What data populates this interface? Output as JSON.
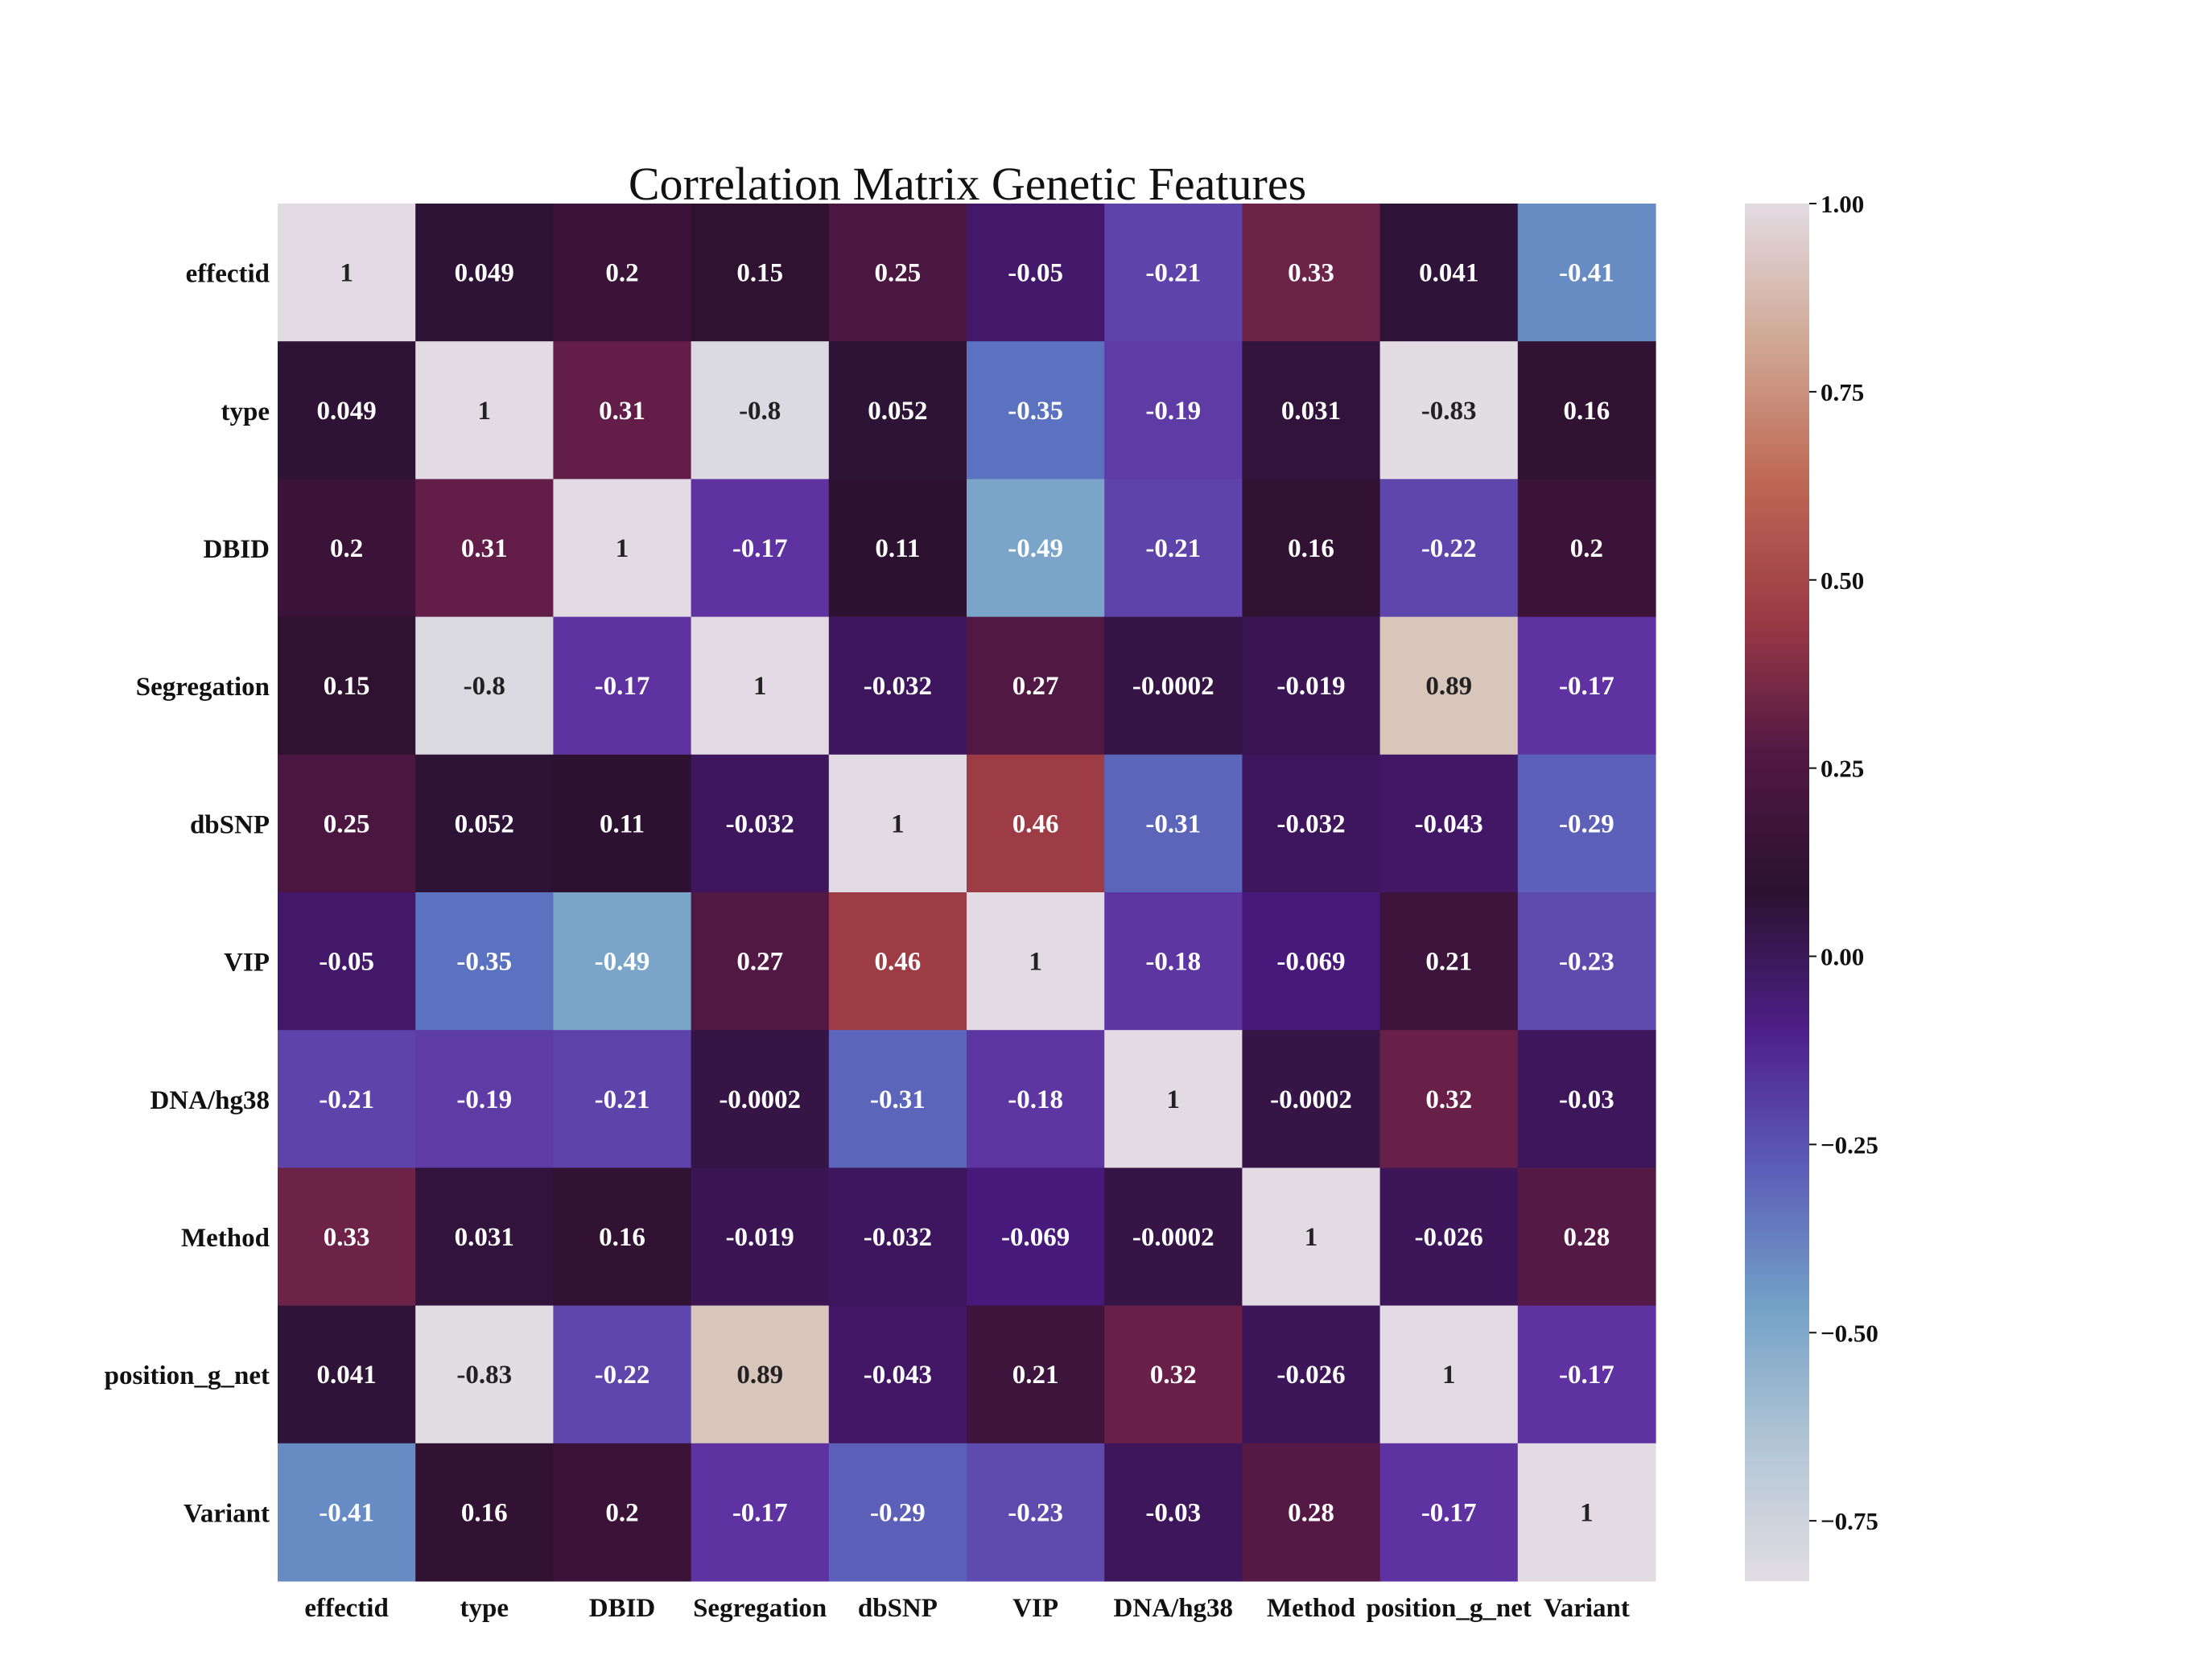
{
  "chart_data": {
    "type": "heatmap",
    "title": "Correlation Matrix Genetic Features",
    "xlabel": "",
    "ylabel": "",
    "x_labels": [
      "effectid",
      "type",
      "DBID",
      "Segregation",
      "dbSNP",
      "VIP",
      "DNA/hg38",
      "Method",
      "position_g_net",
      "Variant"
    ],
    "y_labels": [
      "effectid",
      "type",
      "DBID",
      "Segregation",
      "dbSNP",
      "VIP",
      "DNA/hg38",
      "Method",
      "position_g_net",
      "Variant"
    ],
    "values": [
      [
        1,
        0.049,
        0.2,
        0.15,
        0.25,
        -0.05,
        -0.21,
        0.33,
        0.041,
        -0.41
      ],
      [
        0.049,
        1,
        0.31,
        -0.8,
        0.052,
        -0.35,
        -0.19,
        0.031,
        -0.83,
        0.16
      ],
      [
        0.2,
        0.31,
        1,
        -0.17,
        0.11,
        -0.49,
        -0.21,
        0.16,
        -0.22,
        0.2
      ],
      [
        0.15,
        -0.8,
        -0.17,
        1,
        -0.032,
        0.27,
        -0.0002,
        -0.019,
        0.89,
        -0.17
      ],
      [
        0.25,
        0.052,
        0.11,
        -0.032,
        1,
        0.46,
        -0.31,
        -0.032,
        -0.043,
        -0.29
      ],
      [
        -0.05,
        -0.35,
        -0.49,
        0.27,
        0.46,
        1,
        -0.18,
        -0.069,
        0.21,
        -0.23
      ],
      [
        -0.21,
        -0.19,
        -0.21,
        -0.0002,
        -0.31,
        -0.18,
        1,
        -0.0002,
        0.32,
        -0.03
      ],
      [
        0.33,
        0.031,
        0.16,
        -0.019,
        -0.032,
        -0.069,
        -0.0002,
        1,
        -0.026,
        0.28
      ],
      [
        0.041,
        -0.83,
        -0.22,
        0.89,
        -0.043,
        0.21,
        0.32,
        -0.026,
        1,
        -0.17
      ],
      [
        -0.41,
        0.16,
        0.2,
        -0.17,
        -0.29,
        -0.23,
        -0.03,
        0.28,
        -0.17,
        1
      ]
    ],
    "annotations": [
      [
        "1",
        "0.049",
        "0.2",
        "0.15",
        "0.25",
        "-0.05",
        "-0.21",
        "0.33",
        "0.041",
        "-0.41"
      ],
      [
        "0.049",
        "1",
        "0.31",
        "-0.8",
        "0.052",
        "-0.35",
        "-0.19",
        "0.031",
        "-0.83",
        "0.16"
      ],
      [
        "0.2",
        "0.31",
        "1",
        "-0.17",
        "0.11",
        "-0.49",
        "-0.21",
        "0.16",
        "-0.22",
        "0.2"
      ],
      [
        "0.15",
        "-0.8",
        "-0.17",
        "1",
        "-0.032",
        "0.27",
        "-0.0002",
        "-0.019",
        "0.89",
        "-0.17"
      ],
      [
        "0.25",
        "0.052",
        "0.11",
        "-0.032",
        "1",
        "0.46",
        "-0.31",
        "-0.032",
        "-0.043",
        "-0.29"
      ],
      [
        "-0.05",
        "-0.35",
        "-0.49",
        "0.27",
        "0.46",
        "1",
        "-0.18",
        "-0.069",
        "0.21",
        "-0.23"
      ],
      [
        "-0.21",
        "-0.19",
        "-0.21",
        "-0.0002",
        "-0.31",
        "-0.18",
        "1",
        "-0.0002",
        "0.32",
        "-0.03"
      ],
      [
        "0.33",
        "0.031",
        "0.16",
        "-0.019",
        "-0.032",
        "-0.069",
        "-0.0002",
        "1",
        "-0.026",
        "0.28"
      ],
      [
        "0.041",
        "-0.83",
        "-0.22",
        "0.89",
        "-0.043",
        "0.21",
        "0.32",
        "-0.026",
        "1",
        "-0.17"
      ],
      [
        "-0.41",
        "0.16",
        "0.2",
        "-0.17",
        "-0.29",
        "-0.23",
        "-0.03",
        "0.28",
        "-0.17",
        "1"
      ]
    ],
    "colorbar": {
      "vmin": -0.83,
      "vmax": 1.0,
      "ticks": [
        1.0,
        0.75,
        0.5,
        0.25,
        0.0,
        -0.25,
        -0.5,
        -0.75
      ],
      "tick_labels": [
        "1.00",
        "0.75",
        "0.50",
        "0.25",
        "0.00",
        "−0.25",
        "−0.50",
        "−0.75"
      ],
      "colormap": "twilight (shifted)",
      "position": "right"
    },
    "colors": {
      "light_lavender": "#e3dbe3",
      "cream_tan": "#d9c6b9",
      "terracotta": "#c2734f",
      "red_brown": "#a13f44",
      "plum": "#5a1a48",
      "dark": "#2a1230",
      "indigo": "#3a1270",
      "violet": "#6136a3",
      "blue_violet": "#5c68bc",
      "steel_blue": "#72a0c8",
      "grey_blue": "#bacbd7",
      "text_light": "#ffffff",
      "text_dark": "#222222"
    }
  }
}
